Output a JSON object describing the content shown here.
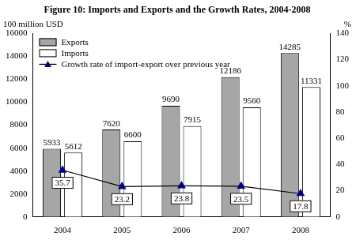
{
  "chart_data": {
    "type": "bar",
    "title": "Figure 10: Imports and Exports and the Growth Rates, 2004-2008",
    "y_label": "100 million USD",
    "y2_label": "%",
    "categories": [
      "2004",
      "2005",
      "2006",
      "2007",
      "2008"
    ],
    "series": [
      {
        "name": "Exports",
        "type": "bar",
        "color": "#a6a6a6",
        "values": [
          5933,
          7620,
          9690,
          12186,
          14285
        ]
      },
      {
        "name": "Imports",
        "type": "bar",
        "color": "#ffffff",
        "values": [
          5612,
          6600,
          7915,
          9560,
          11331
        ]
      },
      {
        "name": "Growth rate of import-export over previous year",
        "type": "line",
        "axis": "y2",
        "color": "#000080",
        "marker": "triangle",
        "line_style": "solid",
        "values": [
          35.7,
          23.2,
          23.8,
          23.5,
          17.8
        ]
      }
    ],
    "ylim": [
      0,
      16000
    ],
    "yticks": [
      0,
      2000,
      4000,
      6000,
      8000,
      10000,
      12000,
      14000,
      16000
    ],
    "y2lim": [
      0,
      140
    ],
    "y2ticks": [
      0,
      20,
      40,
      60,
      80,
      100,
      120,
      140
    ],
    "grid": false,
    "legend": "upper left",
    "data_labels": true
  }
}
